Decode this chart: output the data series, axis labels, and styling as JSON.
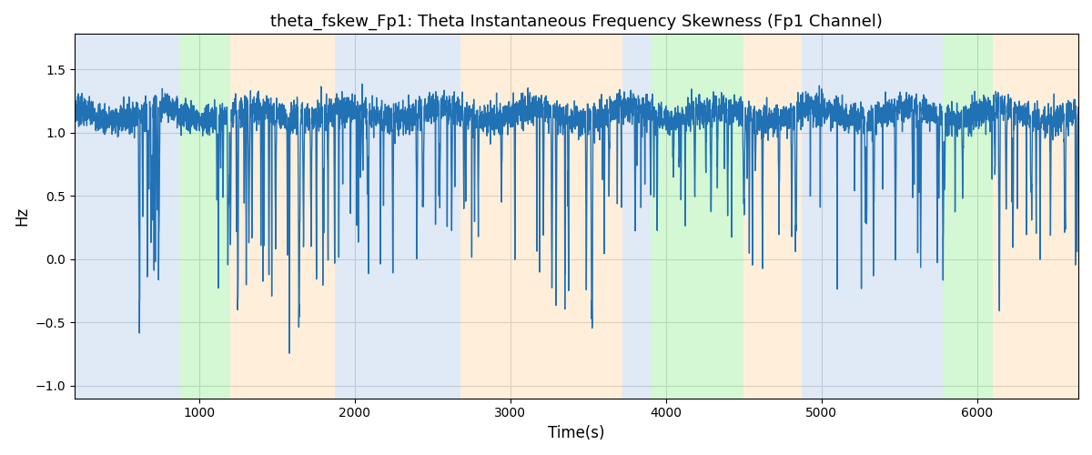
{
  "title": "theta_fskew_Fp1: Theta Instantaneous Frequency Skewness (Fp1 Channel)",
  "xlabel": "Time(s)",
  "ylabel": "Hz",
  "xlim": [
    200,
    6650
  ],
  "ylim": [
    -1.1,
    1.78
  ],
  "line_color": "#2171b5",
  "line_width": 1.0,
  "grid_color": "#cccccc",
  "bands": [
    {
      "start": 200,
      "end": 880,
      "color": "#aec6e8",
      "alpha": 0.38
    },
    {
      "start": 880,
      "end": 1200,
      "color": "#90ee90",
      "alpha": 0.38
    },
    {
      "start": 1200,
      "end": 1870,
      "color": "#ffd59e",
      "alpha": 0.38
    },
    {
      "start": 1870,
      "end": 2680,
      "color": "#aec6e8",
      "alpha": 0.38
    },
    {
      "start": 2680,
      "end": 2780,
      "color": "#ffd59e",
      "alpha": 0.38
    },
    {
      "start": 2780,
      "end": 3720,
      "color": "#ffd59e",
      "alpha": 0.38
    },
    {
      "start": 3720,
      "end": 3900,
      "color": "#aec6e8",
      "alpha": 0.38
    },
    {
      "start": 3900,
      "end": 4500,
      "color": "#90ee90",
      "alpha": 0.38
    },
    {
      "start": 4500,
      "end": 4870,
      "color": "#ffd59e",
      "alpha": 0.38
    },
    {
      "start": 4870,
      "end": 5780,
      "color": "#aec6e8",
      "alpha": 0.38
    },
    {
      "start": 5780,
      "end": 6100,
      "color": "#90ee90",
      "alpha": 0.38
    },
    {
      "start": 6100,
      "end": 6650,
      "color": "#ffd59e",
      "alpha": 0.38
    }
  ],
  "t_start": 200,
  "t_end": 6650,
  "n_points": 6450,
  "seed": 7
}
